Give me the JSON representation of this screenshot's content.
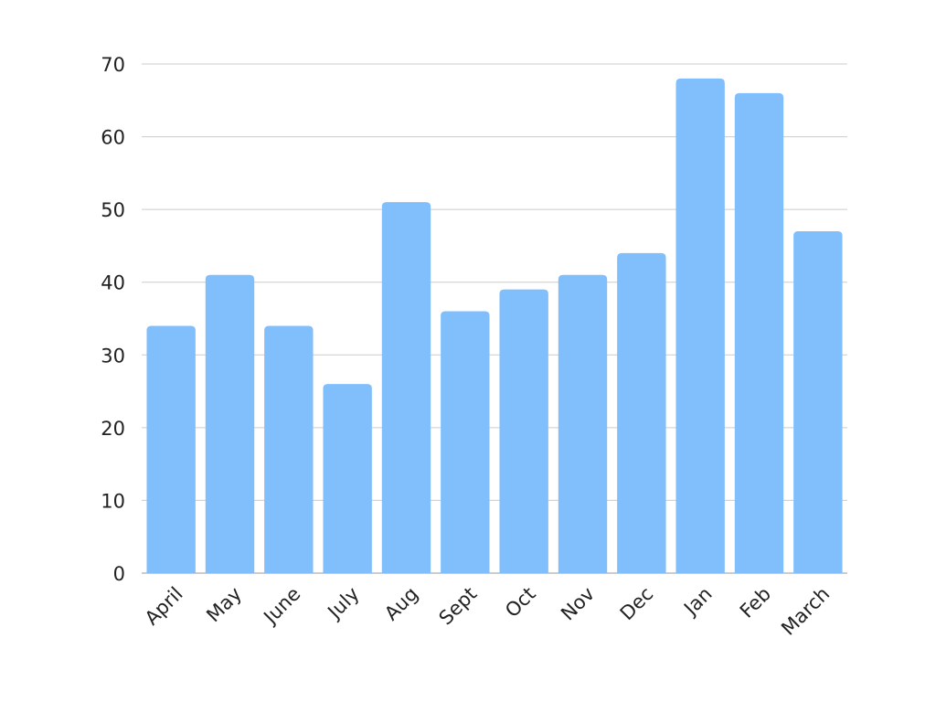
{
  "chart_data": {
    "type": "bar",
    "categories": [
      "April",
      "May",
      "June",
      "July",
      "Aug",
      "Sept",
      "Oct",
      "Nov",
      "Dec",
      "Jan",
      "Feb",
      "March"
    ],
    "values": [
      34,
      41,
      34,
      26,
      51,
      36,
      39,
      41,
      44,
      68,
      66,
      47
    ],
    "color": "#80bffc",
    "ylim": [
      0,
      70
    ],
    "yticks": [
      0,
      10,
      20,
      30,
      40,
      50,
      60,
      70
    ],
    "grid": true
  }
}
